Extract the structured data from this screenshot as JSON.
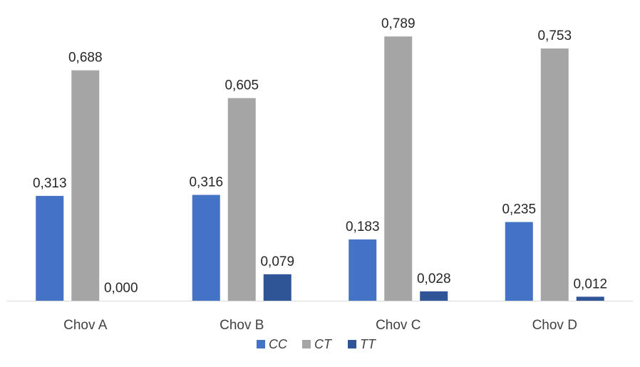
{
  "chart_data": {
    "type": "bar",
    "title": "",
    "xlabel": "",
    "ylabel": "",
    "categories": [
      "Chov A",
      "Chov B",
      "Chov C",
      "Chov D"
    ],
    "series": [
      {
        "name": "CC",
        "color": "#4472C4",
        "values": [
          0.313,
          0.316,
          0.183,
          0.235
        ],
        "labels": [
          "0,313",
          "0,316",
          "0,183",
          "0,235"
        ]
      },
      {
        "name": "CT",
        "color": "#A5A5A5",
        "values": [
          0.688,
          0.605,
          0.789,
          0.753
        ],
        "labels": [
          "0,688",
          "0,605",
          "0,789",
          "0,753"
        ]
      },
      {
        "name": "TT",
        "color": "#2F5597",
        "values": [
          0.0,
          0.079,
          0.028,
          0.012
        ],
        "labels": [
          "0,000",
          "0,079",
          "0,028",
          "0,012"
        ]
      }
    ],
    "ylim": [
      0,
      0.85
    ],
    "grid": false,
    "legend": "bottom-center"
  }
}
